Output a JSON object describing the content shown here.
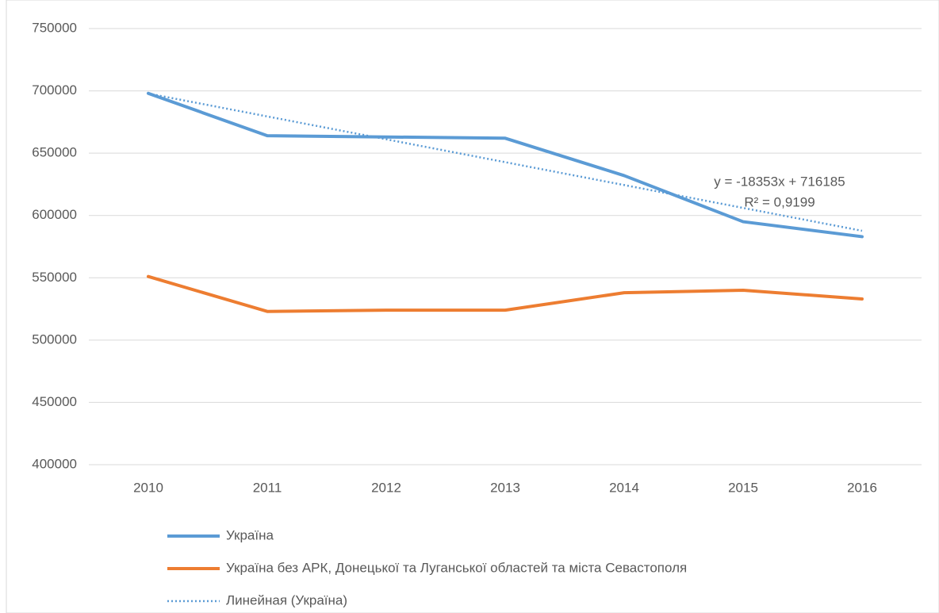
{
  "chart_data": {
    "type": "line",
    "categories": [
      "2010",
      "2011",
      "2012",
      "2013",
      "2014",
      "2015",
      "2016"
    ],
    "series": [
      {
        "name": "Україна",
        "color": "#5b9bd5",
        "values": [
          698000,
          664000,
          663000,
          662000,
          632000,
          595000,
          583000
        ]
      },
      {
        "name": "Україна без АРК, Донецької та Луганської областей та міста Севастополя",
        "color": "#ed7d31",
        "values": [
          551000,
          523000,
          524000,
          524000,
          538000,
          540000,
          533000
        ]
      }
    ],
    "trendline": {
      "name": "Линейная (Україна)",
      "color": "#5b9bd5",
      "equation": "y = -18353x + 716185",
      "slope": -18353,
      "intercept": 716185,
      "r_squared": "R² = 0,9199"
    },
    "ylim": [
      400000,
      750000
    ],
    "yticks": [
      400000,
      450000,
      500000,
      550000,
      600000,
      650000,
      700000,
      750000
    ],
    "grid": true,
    "legend": "bottom"
  }
}
